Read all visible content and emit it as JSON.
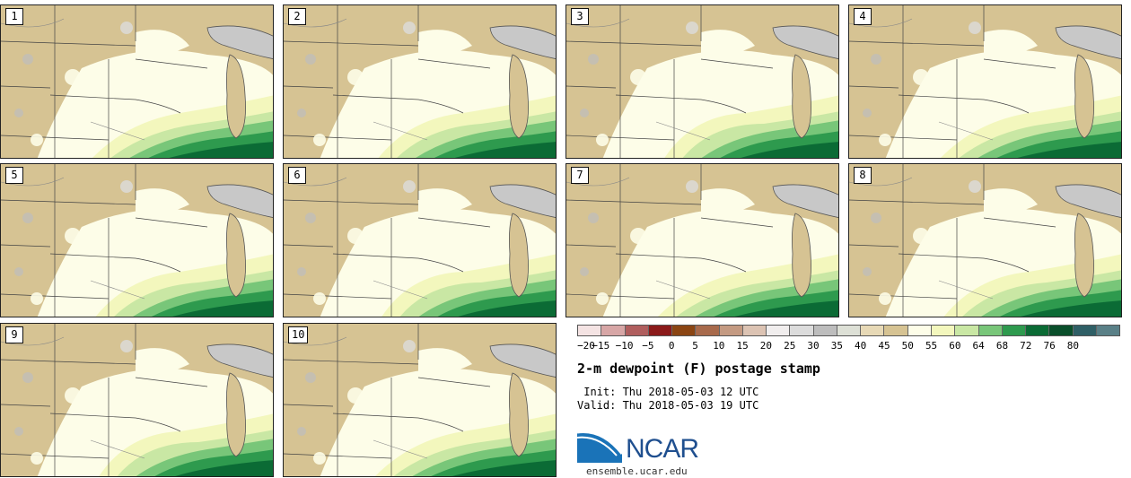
{
  "panels": [
    {
      "label": "1"
    },
    {
      "label": "2"
    },
    {
      "label": "3"
    },
    {
      "label": "4"
    },
    {
      "label": "5"
    },
    {
      "label": "6"
    },
    {
      "label": "7"
    },
    {
      "label": "8"
    },
    {
      "label": "9"
    },
    {
      "label": "10"
    }
  ],
  "colorbar": {
    "colors": [
      "#f4e3e3",
      "#d7a6a6",
      "#b05e5e",
      "#8b1a1a",
      "#8b4513",
      "#a86a4c",
      "#c49a82",
      "#dcc3b3",
      "#f1eeee",
      "#dcdcdc",
      "#bdbdbd",
      "#dde0d6",
      "#e7d9b6",
      "#d6c393",
      "#fdfde8",
      "#f3f7bd",
      "#c9e7a4",
      "#78c679",
      "#2e9a4e",
      "#0b6b35",
      "#0a4f2b",
      "#2f5f66",
      "#5a8087"
    ],
    "tick_labels": [
      "−20",
      "−15",
      "−10",
      "−5",
      "0",
      "5",
      "10",
      "15",
      "20",
      "25",
      "30",
      "35",
      "40",
      "45",
      "50",
      "55",
      "60",
      "64",
      "68",
      "72",
      "76",
      "80"
    ]
  },
  "title": "2-m dewpoint (F) postage stamp",
  "init": " Init: Thu 2018-05-03 12 UTC",
  "valid": "Valid: Thu 2018-05-03 19 UTC",
  "logo": {
    "name": "NCAR",
    "url": "ensemble.ucar.edu"
  }
}
